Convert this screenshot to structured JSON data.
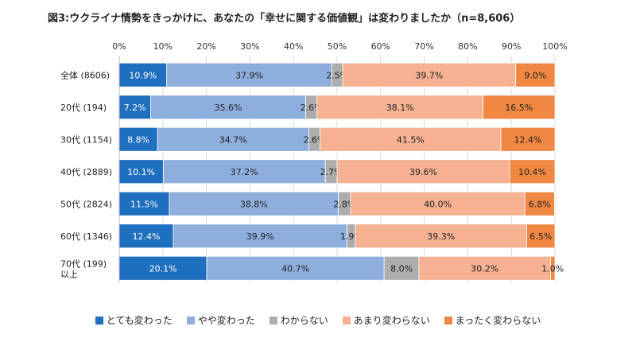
{
  "chart_data": {
    "type": "bar",
    "orientation": "horizontal",
    "stacked": "percent",
    "title": "図3:ウクライナ情勢をきっかけに、あなたの「幸せに関する価値観」は変わりましたか（n=8,606）",
    "categories": [
      "全体 (8606)",
      "20代 (194)",
      "30代 (1154)",
      "40代 (2889)",
      "50代 (2824)",
      "60代 (1346)",
      "70代 (199)\n以上"
    ],
    "xlim": [
      0,
      100
    ],
    "xticks": [
      "0%",
      "10%",
      "20%",
      "30%",
      "40%",
      "50%",
      "60%",
      "70%",
      "80%",
      "90%",
      "100%"
    ],
    "grid": true,
    "legend_position": "bottom",
    "series": [
      {
        "name": "とても変わった",
        "color": "#1f6fbf",
        "label_color": "#ffffff",
        "values": [
          10.9,
          7.2,
          8.8,
          10.1,
          11.5,
          12.4,
          20.1
        ],
        "labels": [
          "10.9%",
          "7.2%",
          "8.8%",
          "10.1%",
          "11.5%",
          "12.4%",
          "20.1%"
        ]
      },
      {
        "name": "やや変わった",
        "color": "#8eaede",
        "label_color": "#222222",
        "values": [
          37.9,
          35.6,
          34.7,
          37.2,
          38.8,
          39.9,
          40.7
        ],
        "labels": [
          "37.9%",
          "35.6%",
          "34.7%",
          "37.2%",
          "38.8%",
          "39.9%",
          "40.7%"
        ]
      },
      {
        "name": "わからない",
        "color": "#adadad",
        "label_color": "#222222",
        "values": [
          2.5,
          2.6,
          2.6,
          2.7,
          2.8,
          1.9,
          8.0
        ],
        "labels": [
          "2.5%",
          "2.6%",
          "2.6%",
          "2.7%",
          "2.8%",
          "1.9%",
          "8.0%"
        ]
      },
      {
        "name": "あまり変わらない",
        "color": "#f5b192",
        "label_color": "#222222",
        "values": [
          39.7,
          38.1,
          41.5,
          39.6,
          40.0,
          39.3,
          30.2
        ],
        "labels": [
          "39.7%",
          "38.1%",
          "41.5%",
          "39.6%",
          "40.0%",
          "39.3%",
          "30.2%"
        ]
      },
      {
        "name": "まったく変わらない",
        "color": "#f08742",
        "label_color": "#222222",
        "values": [
          9.0,
          16.5,
          12.4,
          10.4,
          6.8,
          6.5,
          1.0
        ],
        "labels": [
          "9.0%",
          "16.5%",
          "12.4%",
          "10.4%",
          "6.8%",
          "6.5%",
          "1.0%"
        ]
      }
    ]
  }
}
